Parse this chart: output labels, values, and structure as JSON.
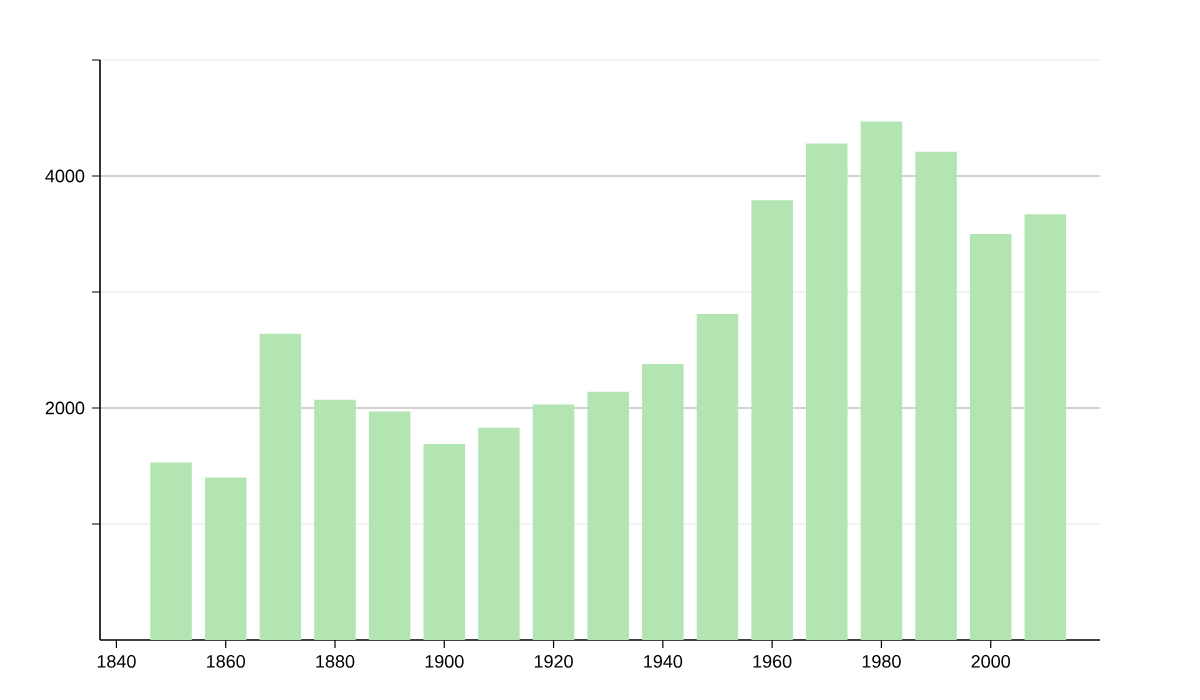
{
  "chart_data": {
    "type": "bar",
    "x": [
      1850,
      1860,
      1870,
      1880,
      1890,
      1900,
      1910,
      1920,
      1930,
      1940,
      1950,
      1960,
      1970,
      1980,
      1990,
      2000,
      2010
    ],
    "values": [
      1530,
      1400,
      2640,
      2070,
      1970,
      1690,
      1830,
      2030,
      2140,
      2380,
      2810,
      3790,
      4280,
      4470,
      4210,
      3500,
      3670
    ],
    "color": "#b3e5b3",
    "xlim": [
      1837,
      2020
    ],
    "xticks": [
      1840,
      1860,
      1880,
      1900,
      1920,
      1940,
      1960,
      1980,
      2000
    ],
    "ylim": [
      0,
      5000
    ],
    "yticks": [
      {
        "value": 1000,
        "label": null
      },
      2000,
      {
        "value": 3000,
        "label": null
      },
      4000,
      {
        "value": 5000,
        "label": null
      }
    ],
    "grid": "y"
  }
}
